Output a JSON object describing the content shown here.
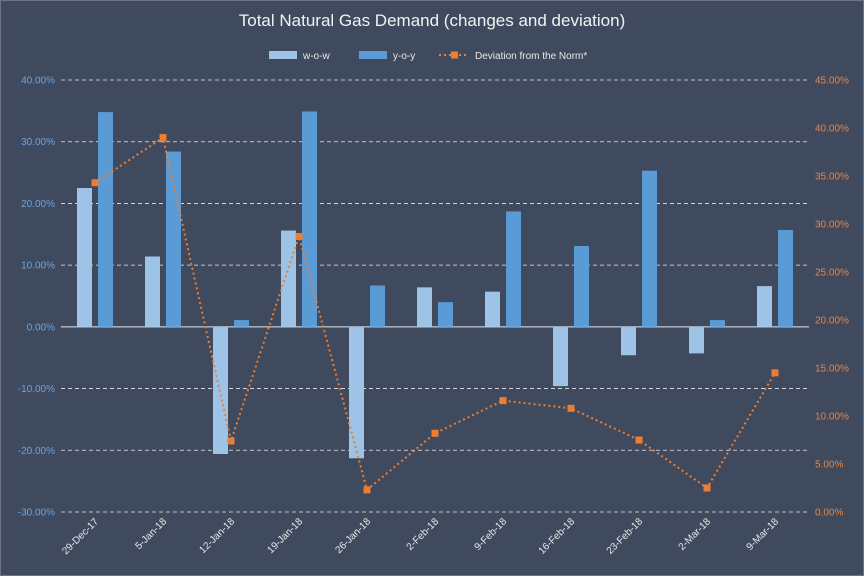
{
  "chart_data": {
    "type": "bar",
    "title": "Total Natural Gas Demand (changes and deviation)",
    "categories": [
      "29-Dec-17",
      "5-Jan-18",
      "12-Jan-18",
      "19-Jan-18",
      "26-Jan-18",
      "2-Feb-18",
      "9-Feb-18",
      "16-Feb-18",
      "23-Feb-18",
      "2-Mar-18",
      "9-Mar-18"
    ],
    "series": [
      {
        "name": "w-o-w",
        "type": "bar",
        "axis": "left",
        "color": "#9dc3e6",
        "values": [
          22.5,
          11.4,
          -20.6,
          15.6,
          -21.3,
          6.4,
          5.7,
          -9.6,
          -4.6,
          -4.3,
          6.6
        ]
      },
      {
        "name": "y-o-y",
        "type": "bar",
        "axis": "left",
        "color": "#5b9bd5",
        "values": [
          34.8,
          28.4,
          1.1,
          34.9,
          6.7,
          4.0,
          18.7,
          13.1,
          25.3,
          1.1,
          15.7
        ]
      },
      {
        "name": "Deviation from the Norm*",
        "type": "line",
        "axis": "right",
        "color": "#ed7d31",
        "values": [
          34.3,
          39.0,
          7.4,
          28.7,
          2.3,
          8.2,
          11.6,
          10.8,
          7.5,
          2.5,
          14.5
        ]
      }
    ],
    "y_left": {
      "min": -30,
      "max": 40,
      "step": 10,
      "ticks": [
        "-30.00%",
        "-20.00%",
        "-10.00%",
        "0.00%",
        "10.00%",
        "20.00%",
        "30.00%",
        "40.00%"
      ]
    },
    "y_right": {
      "min": 0,
      "max": 45,
      "step": 5,
      "ticks": [
        "0.00%",
        "5.00%",
        "10.00%",
        "15.00%",
        "20.00%",
        "25.00%",
        "30.00%",
        "35.00%",
        "40.00%",
        "45.00%"
      ]
    },
    "grid": true,
    "legend": "top-center"
  }
}
